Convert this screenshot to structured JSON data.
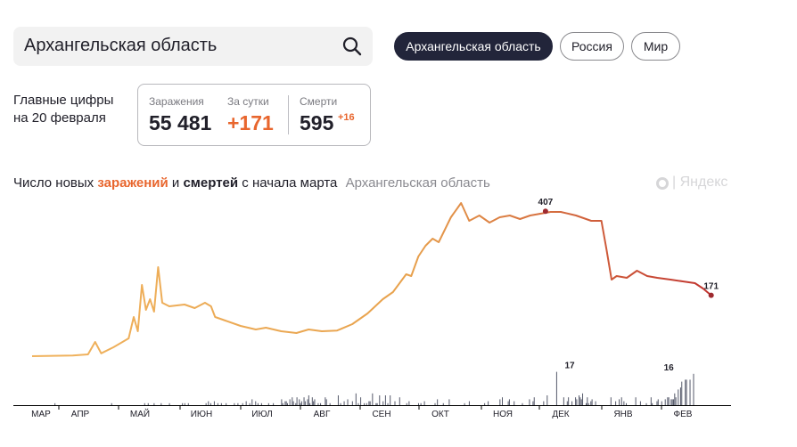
{
  "search": {
    "value": "Архангельская область"
  },
  "region_tabs": [
    {
      "label": "Архангельская область",
      "active": true
    },
    {
      "label": "Россия",
      "active": false
    },
    {
      "label": "Мир",
      "active": false
    }
  ],
  "main_figures": {
    "caption_line1": "Главные цифры",
    "caption_line2": "на 20 февраля",
    "infections_label": "Заражения",
    "infections_value": "55 481",
    "daily_label": "За сутки",
    "daily_value": "+171",
    "deaths_label": "Смерти",
    "deaths_value": "595",
    "deaths_delta": "+16"
  },
  "chart_title": {
    "prefix": "Число новых ",
    "infections_word": "заражений",
    "conjunction": " и ",
    "deaths_word": "смертей",
    "suffix": " с начала марта",
    "region": "Архангельская область"
  },
  "brand": "Яндекс",
  "colors": {
    "infections_start": "#f0b35e",
    "infections_end": "#c0332f",
    "deaths": "#565a6b",
    "accent": "#e8662e",
    "dark_pill": "#22253a"
  },
  "chart_data": {
    "type": "line",
    "x_ticks": [
      "МАР",
      "АПР",
      "МАЙ",
      "ИЮН",
      "ИЮЛ",
      "АВГ",
      "СЕН",
      "ОКТ",
      "НОЯ",
      "ДЕК",
      "ЯНВ",
      "ФЕВ"
    ],
    "series": [
      {
        "name": "заражений",
        "points": [
          [
            0,
            0
          ],
          [
            20,
            1
          ],
          [
            40,
            2
          ],
          [
            55,
            5
          ],
          [
            62,
            40
          ],
          [
            68,
            8
          ],
          [
            80,
            25
          ],
          [
            95,
            50
          ],
          [
            100,
            110
          ],
          [
            104,
            70
          ],
          [
            108,
            200
          ],
          [
            112,
            130
          ],
          [
            116,
            160
          ],
          [
            120,
            125
          ],
          [
            124,
            250
          ],
          [
            128,
            150
          ],
          [
            135,
            140
          ],
          [
            150,
            145
          ],
          [
            160,
            135
          ],
          [
            170,
            150
          ],
          [
            176,
            140
          ],
          [
            180,
            110
          ],
          [
            190,
            100
          ],
          [
            205,
            85
          ],
          [
            220,
            75
          ],
          [
            230,
            80
          ],
          [
            245,
            70
          ],
          [
            260,
            65
          ],
          [
            272,
            75
          ],
          [
            285,
            70
          ],
          [
            300,
            72
          ],
          [
            315,
            90
          ],
          [
            330,
            120
          ],
          [
            345,
            160
          ],
          [
            355,
            180
          ],
          [
            368,
            230
          ],
          [
            373,
            225
          ],
          [
            380,
            280
          ],
          [
            387,
            310
          ],
          [
            394,
            330
          ],
          [
            400,
            320
          ],
          [
            412,
            390
          ],
          [
            422,
            430
          ],
          [
            430,
            380
          ],
          [
            440,
            395
          ],
          [
            450,
            375
          ],
          [
            460,
            390
          ],
          [
            470,
            395
          ],
          [
            480,
            385
          ],
          [
            490,
            395
          ],
          [
            500,
            400
          ],
          [
            510,
            405
          ],
          [
            520,
            405
          ],
          [
            535,
            395
          ],
          [
            550,
            380
          ],
          [
            560,
            380
          ],
          [
            565,
            300
          ],
          [
            570,
            215
          ],
          [
            575,
            225
          ],
          [
            585,
            220
          ],
          [
            595,
            240
          ],
          [
            605,
            225
          ],
          [
            615,
            220
          ],
          [
            628,
            215
          ],
          [
            640,
            210
          ],
          [
            652,
            205
          ],
          [
            660,
            190
          ],
          [
            668,
            171
          ]
        ]
      },
      {
        "name": "смертей",
        "values": [
          0,
          0,
          0,
          0,
          0,
          0,
          0,
          0,
          0,
          0,
          0,
          0,
          0,
          0,
          0,
          0,
          0,
          0,
          0,
          1,
          0,
          0,
          0,
          0,
          0,
          0,
          0,
          0,
          0,
          0,
          0,
          0,
          0,
          0,
          0,
          0,
          0,
          0,
          0,
          0,
          0,
          0,
          0,
          0,
          0,
          0,
          0,
          0,
          0,
          0,
          0,
          0,
          0,
          0,
          0,
          0,
          0,
          0,
          0,
          0,
          0,
          0,
          0,
          0,
          0,
          0,
          0,
          1,
          0,
          0,
          0,
          0,
          0,
          0,
          0,
          0,
          0,
          0,
          0,
          0,
          0,
          0,
          0,
          0,
          0,
          0,
          0,
          0,
          0,
          0,
          0,
          0,
          0,
          0,
          0,
          1,
          0,
          0,
          1,
          0,
          0,
          0,
          0,
          1,
          0,
          0,
          0,
          0,
          0,
          1,
          0,
          0,
          0,
          0,
          0,
          0,
          1,
          0,
          0,
          0,
          0,
          0,
          0,
          0,
          0,
          0,
          0,
          1,
          0,
          1,
          0,
          0,
          1,
          0,
          0,
          0,
          0,
          0,
          0,
          0,
          0,
          0,
          0,
          0,
          0,
          0,
          0,
          1,
          0,
          2,
          0,
          1,
          0,
          0,
          2,
          0,
          0,
          1,
          0,
          0,
          1,
          0,
          0,
          0,
          1,
          0,
          0,
          0,
          0,
          0,
          0,
          1,
          0,
          0,
          1,
          0,
          0,
          0,
          1,
          0,
          0,
          2,
          0,
          0,
          1,
          0,
          3,
          0,
          0,
          2,
          0,
          1,
          0,
          0,
          1,
          0,
          0,
          0,
          0,
          0,
          1,
          0,
          0,
          0,
          1,
          0,
          0,
          0,
          0,
          0,
          0,
          3,
          1,
          0,
          2,
          2,
          1,
          0,
          3,
          0,
          4,
          2,
          0,
          1,
          4,
          0,
          3,
          1,
          2,
          0,
          4,
          2,
          0,
          3,
          5,
          1,
          0,
          4,
          2,
          3,
          0,
          0,
          1,
          0,
          1,
          0,
          0,
          0,
          4,
          3,
          0,
          0,
          1,
          0,
          0,
          0,
          0,
          0,
          0,
          5,
          0,
          1,
          0,
          0,
          2,
          0,
          0,
          3,
          0,
          0,
          0,
          2,
          0,
          0,
          6,
          0,
          1,
          0,
          4,
          0,
          0,
          1,
          0,
          1,
          0,
          2,
          2,
          0,
          6,
          0,
          0,
          1,
          1,
          0,
          5,
          0,
          0,
          2,
          0,
          5,
          0,
          1,
          0,
          5,
          0,
          0,
          0,
          2,
          0,
          0,
          0,
          4,
          0,
          0,
          0,
          0,
          0,
          1,
          0,
          2,
          0,
          0,
          0,
          0,
          0,
          0,
          0,
          1,
          0,
          1,
          0,
          0,
          2,
          0,
          0,
          0,
          0,
          0,
          0,
          0,
          0,
          1,
          0,
          3,
          0,
          0,
          0,
          0,
          1,
          0,
          0,
          0,
          0,
          3,
          0,
          0,
          0,
          0,
          0,
          0,
          0,
          0,
          0,
          0,
          0,
          0,
          1,
          0,
          0,
          0,
          2,
          0,
          0,
          0,
          0,
          0,
          0,
          0,
          0,
          0,
          0,
          0,
          0,
          1,
          0,
          0,
          2,
          0,
          0,
          0,
          0,
          0,
          0,
          0,
          0,
          0,
          3,
          0,
          4,
          0,
          0,
          0,
          0,
          2,
          3,
          0,
          0,
          0,
          2,
          0,
          0,
          0,
          0,
          0,
          0,
          1,
          0,
          0,
          0,
          0,
          0,
          3,
          0,
          0,
          2,
          4,
          0,
          0,
          0,
          0,
          0,
          0,
          0,
          2,
          0,
          0,
          5,
          0,
          0,
          0,
          0,
          0,
          0,
          0,
          17,
          0,
          0,
          0,
          0,
          0,
          4,
          0,
          0,
          2,
          4,
          0,
          0,
          2,
          0,
          0,
          4,
          3,
          0,
          5,
          4,
          3,
          6,
          0,
          0,
          1,
          4,
          1,
          0,
          2,
          3,
          0,
          0,
          2,
          0,
          0,
          0,
          0,
          0,
          0,
          0,
          0,
          0,
          0,
          0,
          0,
          4,
          0,
          0,
          0,
          2,
          0,
          0,
          3,
          0,
          4,
          0,
          2,
          0,
          1,
          0,
          0,
          0,
          0,
          0,
          0,
          0,
          4,
          0,
          0,
          0,
          2,
          0,
          0,
          0,
          0,
          1,
          0,
          0,
          0,
          4,
          1,
          0,
          0,
          0,
          2,
          3,
          0,
          0,
          2,
          0,
          0,
          3,
          0,
          4,
          4,
          0,
          3,
          3,
          3,
          6,
          4,
          0,
          8,
          0,
          9,
          12,
          0,
          0,
          13,
          13,
          0,
          0,
          13,
          0,
          0,
          16,
          0,
          0,
          0,
          0,
          0,
          0,
          0,
          0,
          0,
          0,
          0,
          0,
          0,
          0,
          0,
          0
        ]
      }
    ],
    "annotations": [
      {
        "series": "заражений",
        "label": "407",
        "x": 505,
        "y": 407
      },
      {
        "series": "заражений",
        "label": "171",
        "x": 668,
        "y": 171
      },
      {
        "series": "смертей",
        "label": "17",
        "index": 455,
        "y": 17
      },
      {
        "series": "смертей",
        "label": "16",
        "index": 539,
        "y": 16
      }
    ],
    "x_range": [
      0,
      670
    ],
    "y_range": [
      0,
      420
    ],
    "deaths_y_range": [
      0,
      17
    ],
    "grid": false,
    "legend": "none"
  }
}
